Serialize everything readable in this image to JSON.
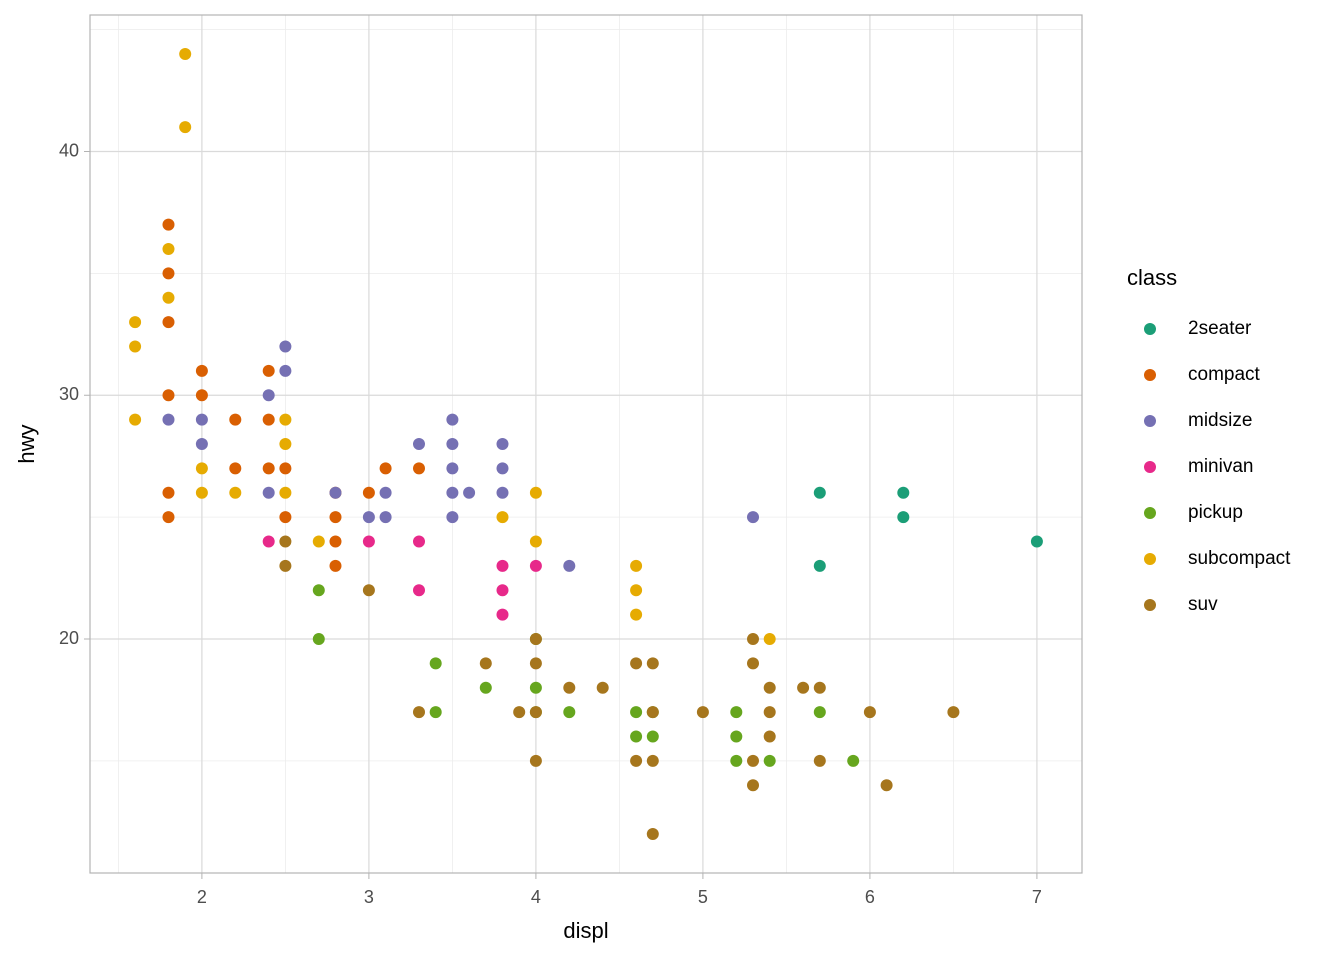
{
  "chart_data": {
    "type": "scatter",
    "x_label": "displ",
    "y_label": "hwy",
    "legend_title": "class",
    "xlim": [
      1.33,
      7.27
    ],
    "ylim": [
      10.4,
      45.6
    ],
    "xticks": [
      2,
      3,
      4,
      5,
      6,
      7
    ],
    "yticks": [
      20,
      30,
      40
    ],
    "x_minor_breaks": [
      1.5,
      2.5,
      3.5,
      4.5,
      5.5,
      6.5
    ],
    "y_minor_breaks": [
      15,
      25,
      35,
      45
    ],
    "grid": true,
    "legend": "right",
    "series": [
      {
        "name": "2seater",
        "color": "#1B9E77",
        "x": [
          5.7,
          5.7,
          6.2,
          6.2,
          7.0
        ],
        "y": [
          26,
          23,
          26,
          25,
          24
        ]
      },
      {
        "name": "compact",
        "color": "#D95F02",
        "x": [
          1.8,
          1.8,
          1.8,
          1.8,
          1.8,
          1.8,
          2.0,
          2.0,
          2.2,
          2.2,
          2.4,
          2.4,
          2.4,
          2.5,
          2.5,
          2.8,
          2.8,
          2.8,
          2.8,
          3.0,
          3.1,
          3.3
        ],
        "y": [
          37,
          35,
          33,
          30,
          26,
          25,
          31,
          30,
          29,
          27,
          31,
          29,
          27,
          27,
          25,
          26,
          25,
          24,
          23,
          26,
          27,
          27
        ]
      },
      {
        "name": "midsize",
        "color": "#7570B3",
        "x": [
          1.8,
          2.0,
          2.0,
          2.4,
          2.4,
          2.5,
          2.5,
          2.8,
          3.0,
          3.1,
          3.1,
          3.3,
          3.5,
          3.5,
          3.5,
          3.5,
          3.5,
          3.6,
          3.8,
          3.8,
          3.8,
          4.2,
          5.3
        ],
        "y": [
          29,
          29,
          28,
          30,
          26,
          32,
          31,
          26,
          25,
          26,
          25,
          28,
          29,
          28,
          27,
          26,
          25,
          26,
          28,
          27,
          26,
          23,
          25
        ]
      },
      {
        "name": "minivan",
        "color": "#E7298A",
        "x": [
          2.4,
          3.0,
          3.3,
          3.3,
          3.8,
          3.8,
          3.8,
          4.0
        ],
        "y": [
          24,
          24,
          24,
          22,
          23,
          22,
          21,
          23
        ]
      },
      {
        "name": "pickup",
        "color": "#66A61E",
        "x": [
          2.7,
          2.7,
          3.4,
          3.4,
          3.7,
          4.0,
          4.0,
          4.0,
          4.2,
          4.6,
          4.6,
          4.7,
          4.7,
          5.2,
          5.2,
          5.2,
          5.4,
          5.7,
          5.9
        ],
        "y": [
          22,
          20,
          19,
          17,
          18,
          20,
          18,
          17,
          17,
          17,
          16,
          17,
          16,
          17,
          16,
          15,
          15,
          17,
          15
        ]
      },
      {
        "name": "subcompact",
        "color": "#E6AB02",
        "x": [
          1.6,
          1.6,
          1.6,
          1.8,
          1.8,
          1.9,
          1.9,
          2.0,
          2.0,
          2.2,
          2.5,
          2.5,
          2.5,
          2.7,
          3.8,
          4.0,
          4.0,
          4.6,
          4.6,
          4.6,
          5.4
        ],
        "y": [
          33,
          32,
          29,
          36,
          34,
          44,
          41,
          27,
          26,
          26,
          29,
          28,
          26,
          24,
          25,
          26,
          24,
          23,
          22,
          21,
          20
        ]
      },
      {
        "name": "suv",
        "color": "#A6761D",
        "x": [
          2.5,
          2.5,
          3.0,
          3.3,
          3.7,
          3.9,
          4.0,
          4.0,
          4.0,
          4.0,
          4.2,
          4.4,
          4.6,
          4.6,
          4.7,
          4.7,
          4.7,
          4.7,
          5.0,
          5.3,
          5.3,
          5.3,
          5.3,
          5.4,
          5.4,
          5.4,
          5.6,
          5.7,
          5.7,
          6.0,
          6.1,
          6.5
        ],
        "y": [
          24,
          23,
          22,
          17,
          19,
          17,
          20,
          19,
          17,
          15,
          18,
          18,
          19,
          15,
          19,
          17,
          15,
          12,
          17,
          20,
          19,
          15,
          14,
          18,
          17,
          16,
          18,
          18,
          15,
          17,
          14,
          17
        ]
      }
    ]
  }
}
